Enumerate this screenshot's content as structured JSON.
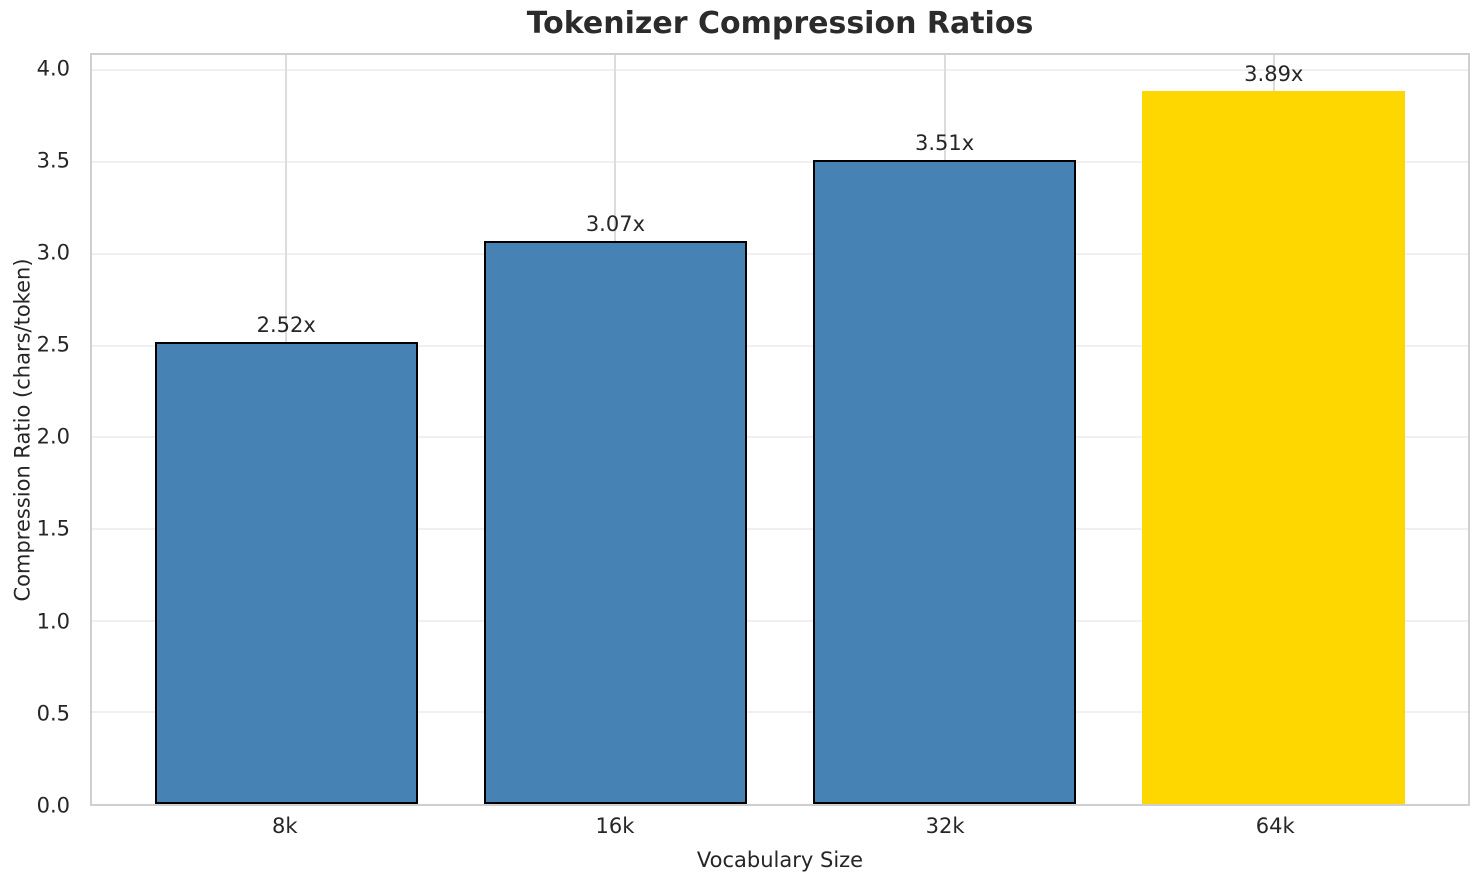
{
  "chart_data": {
    "type": "bar",
    "title": "Tokenizer Compression Ratios",
    "xlabel": "Vocabulary Size",
    "ylabel": "Compression Ratio (chars/token)",
    "categories": [
      "8k",
      "16k",
      "32k",
      "64k"
    ],
    "values": [
      2.52,
      3.07,
      3.51,
      3.89
    ],
    "bar_labels": [
      "2.52x",
      "3.07x",
      "3.51x",
      "3.89x"
    ],
    "bar_colors": [
      "#4682B4",
      "#4682B4",
      "#4682B4",
      "#FFD700"
    ],
    "bar_edge_colors": [
      "#000000",
      "#000000",
      "#000000",
      "none"
    ],
    "yticks": [
      0,
      0.5,
      1,
      1.5,
      2,
      2.5,
      3,
      3.5,
      4
    ],
    "ytick_labels": [
      "0.0",
      "0.5",
      "1.0",
      "1.5",
      "2.0",
      "2.5",
      "3.0",
      "3.5",
      "4.0"
    ],
    "ylim": [
      0,
      4.084
    ],
    "xlim": [
      -0.59,
      3.59
    ],
    "bar_width_units": 0.8,
    "grid": true,
    "legend_position": "none",
    "colors": {
      "bar": "#4682B4",
      "highlight": "#FFD700",
      "edge": "#000000",
      "grid_horizontal": "#F0F0F0",
      "grid_vertical": "#DCDCDC",
      "spine": "#CFCFCF",
      "text": "#262626"
    }
  }
}
